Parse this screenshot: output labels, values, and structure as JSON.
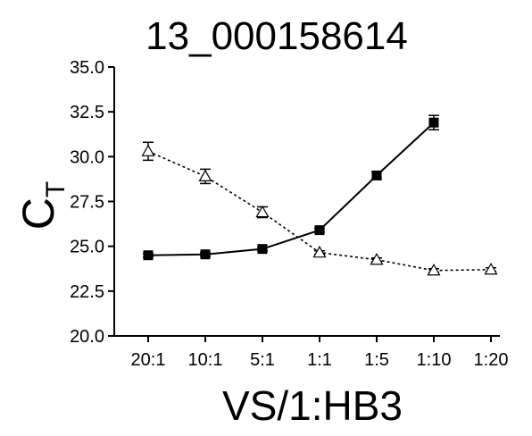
{
  "chart_data": {
    "type": "line",
    "title": "13_000158614",
    "xlabel": "VS/1:HB3",
    "ylabel": "C",
    "ylabel_subscript": "T",
    "categories": [
      "20:1",
      "10:1",
      "5:1",
      "1:1",
      "1:5",
      "1:10",
      "1:20"
    ],
    "ylim": [
      20.0,
      35.0
    ],
    "yticks": [
      "20.0",
      "22.5",
      "25.0",
      "27.5",
      "30.0",
      "32.5",
      "35.0"
    ],
    "grid": false,
    "legend": "none",
    "series": [
      {
        "marker": "filled-square",
        "line_style": "solid",
        "color": "#000000",
        "values": [
          24.5,
          24.55,
          24.85,
          25.9,
          28.95,
          31.9,
          null
        ],
        "error": [
          0.1,
          0.1,
          0.1,
          0.1,
          0.2,
          0.4,
          null
        ]
      },
      {
        "marker": "open-triangle",
        "line_style": "dotted",
        "color": "#000000",
        "values": [
          30.3,
          28.9,
          26.9,
          24.65,
          24.25,
          23.65,
          23.7
        ],
        "error": [
          0.5,
          0.4,
          0.3,
          0.1,
          0.1,
          0.1,
          0.1
        ]
      }
    ]
  }
}
